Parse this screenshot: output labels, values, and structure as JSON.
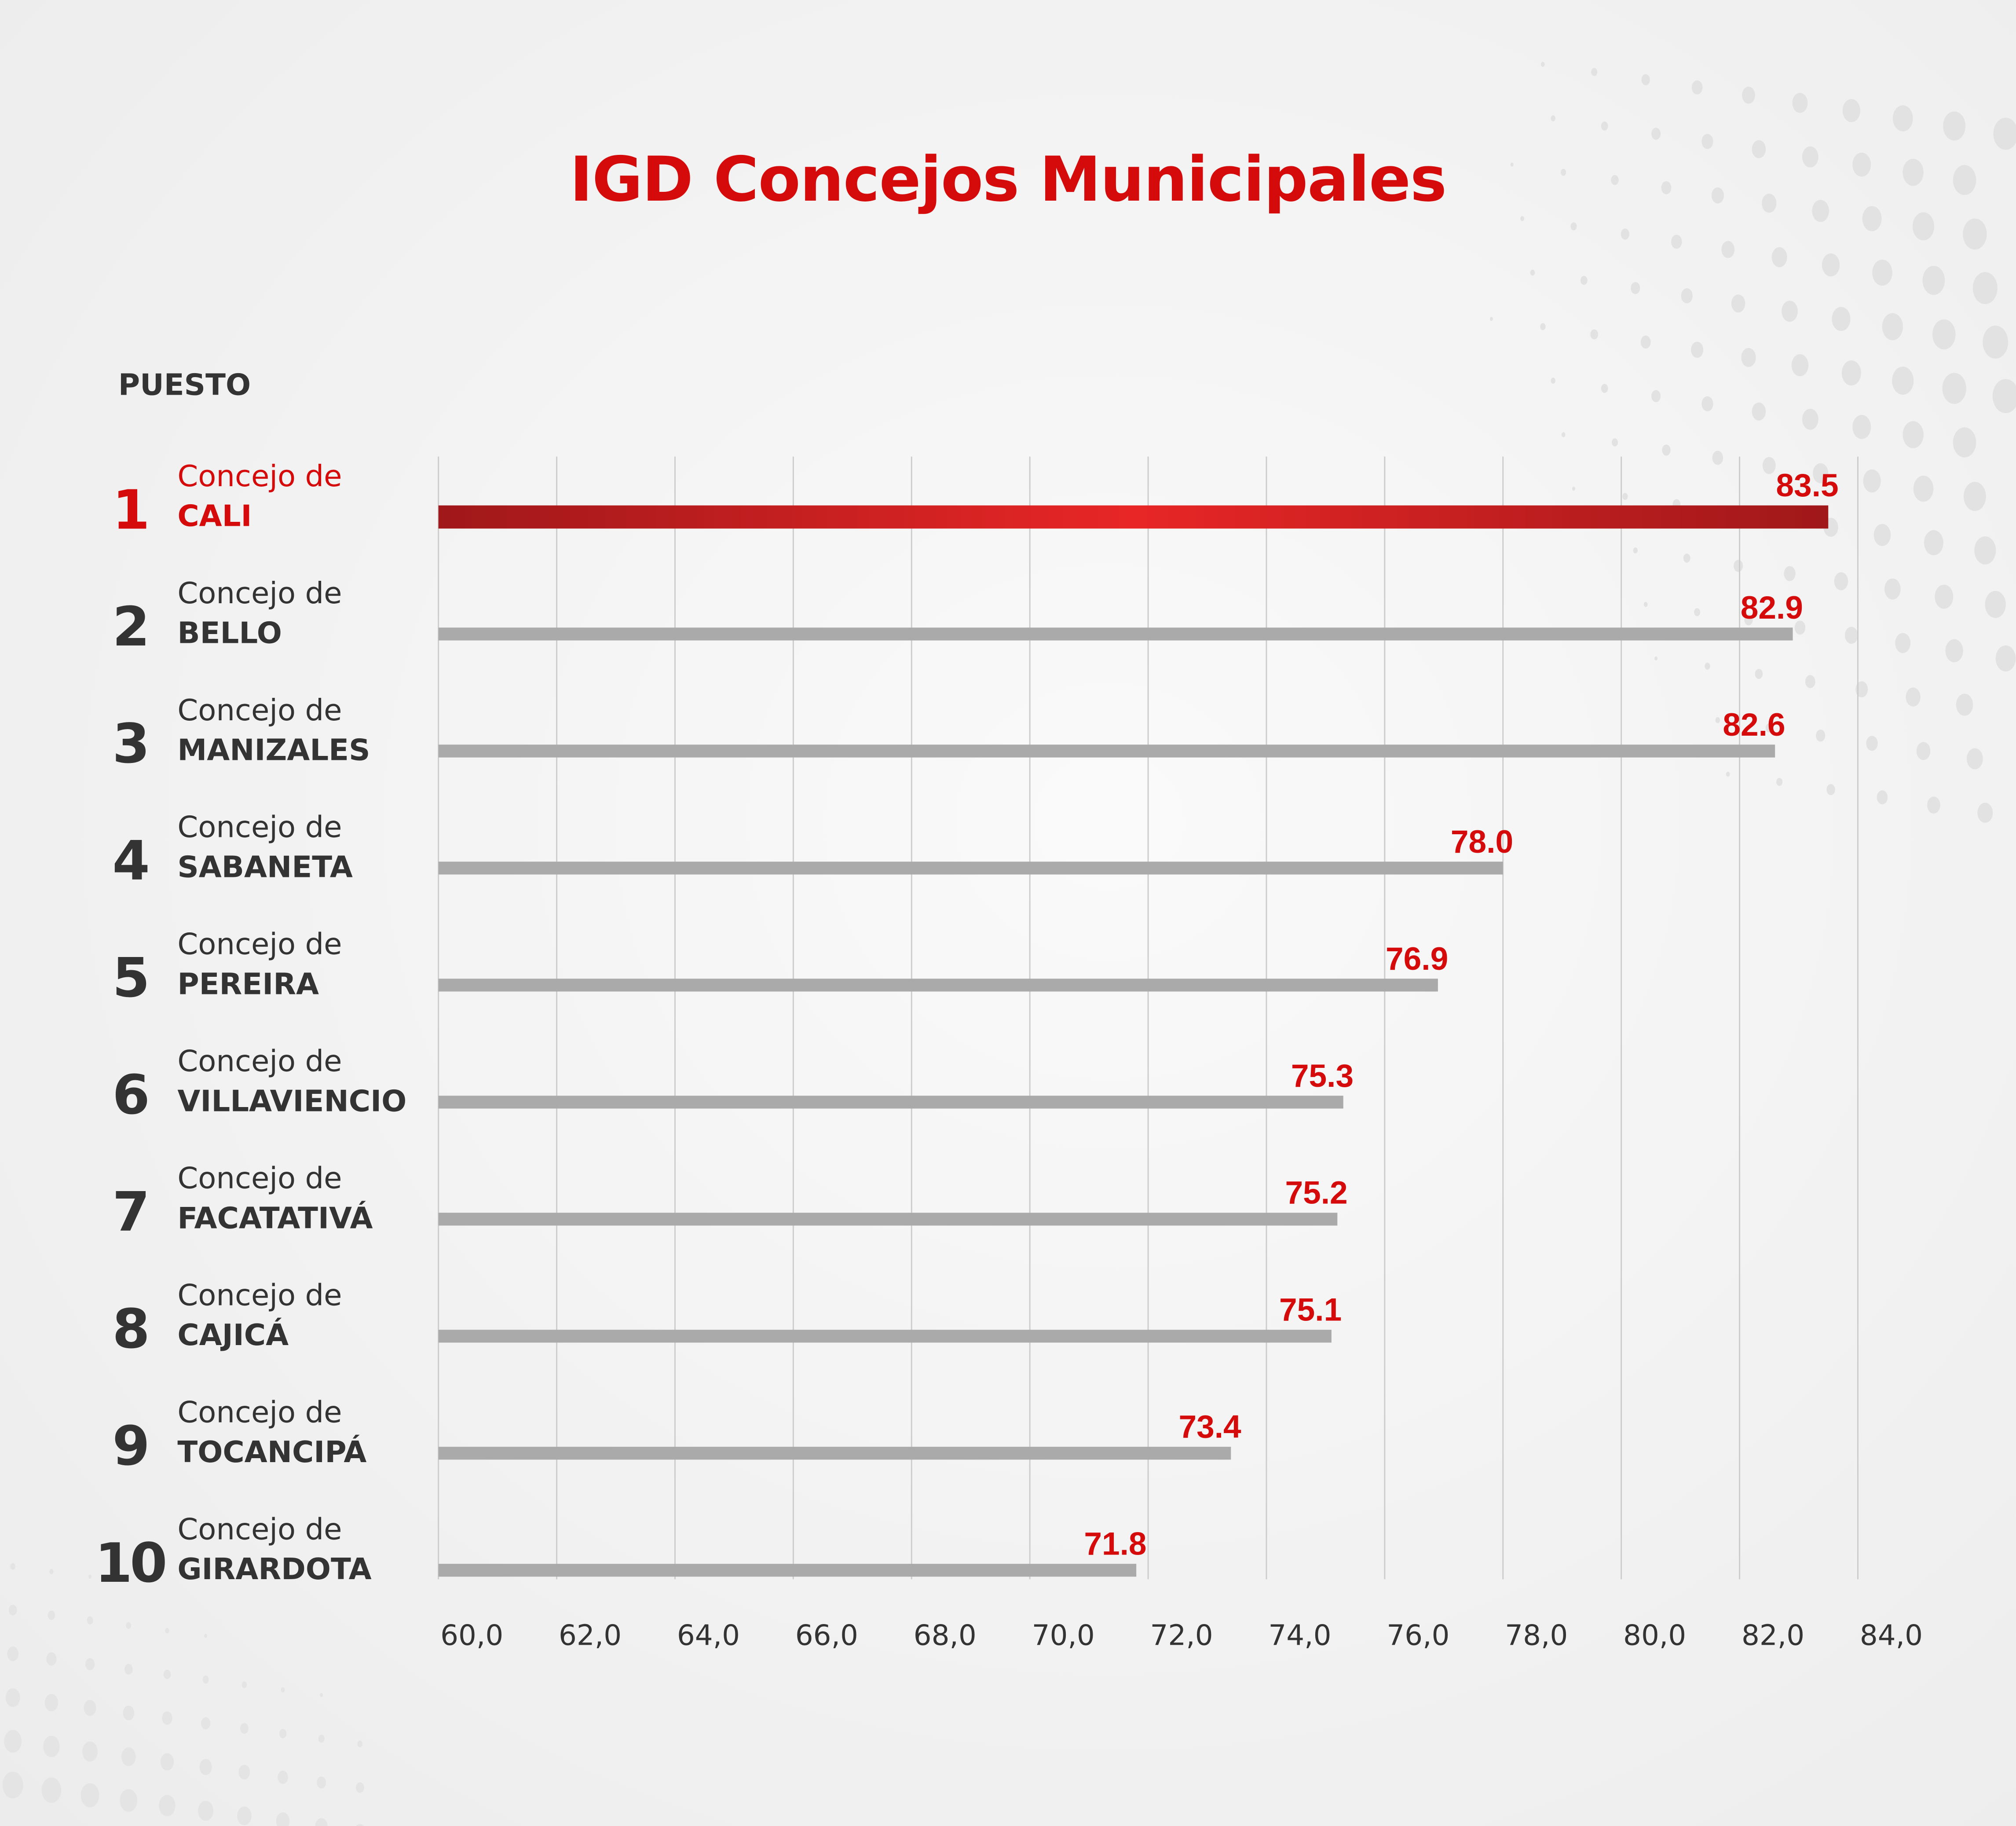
{
  "chart_data": {
    "type": "bar",
    "orientation": "horizontal",
    "title": "IGD Concejos Municipales",
    "rank_header": "PUESTO",
    "rows": [
      {
        "rank": "1",
        "prefix": "Concejo de",
        "name": "CALI",
        "value": 83.5,
        "label": "83.5",
        "highlight": true
      },
      {
        "rank": "2",
        "prefix": "Concejo de",
        "name": "BELLO",
        "value": 82.9,
        "label": "82.9"
      },
      {
        "rank": "3",
        "prefix": "Concejo de",
        "name": "MANIZALES",
        "value": 82.6,
        "label": "82.6"
      },
      {
        "rank": "4",
        "prefix": "Concejo de",
        "name": "SABANETA",
        "value": 78.0,
        "label": "78.0"
      },
      {
        "rank": "5",
        "prefix": "Concejo de",
        "name": "PEREIRA",
        "value": 76.9,
        "label": "76.9"
      },
      {
        "rank": "6",
        "prefix": "Concejo de",
        "name": "VILLAVIENCIO",
        "value": 75.3,
        "label": "75.3"
      },
      {
        "rank": "7",
        "prefix": "Concejo de",
        "name": "FACATATIVÁ",
        "value": 75.2,
        "label": "75.2"
      },
      {
        "rank": "8",
        "prefix": "Concejo de",
        "name": "CAJICÁ",
        "value": 75.1,
        "label": "75.1"
      },
      {
        "rank": "9",
        "prefix": "Concejo de",
        "name": "TOCANCIPÁ",
        "value": 73.4,
        "label": "73.4"
      },
      {
        "rank": "10",
        "prefix": "Concejo de",
        "name": "GIRARDOTA",
        "value": 71.8,
        "label": "71.8"
      }
    ],
    "xlim": [
      60,
      84
    ],
    "xticks": [
      "60,0",
      "62,0",
      "64,0",
      "66,0",
      "68,0",
      "70,0",
      "72,0",
      "74,0",
      "76,0",
      "78,0",
      "80,0",
      "82,0",
      "84,0"
    ],
    "grid": true,
    "colors": {
      "highlight": "#d50b0b",
      "bar": "#aaaaaa",
      "text": "#333333",
      "grid": "#cccccc"
    }
  }
}
